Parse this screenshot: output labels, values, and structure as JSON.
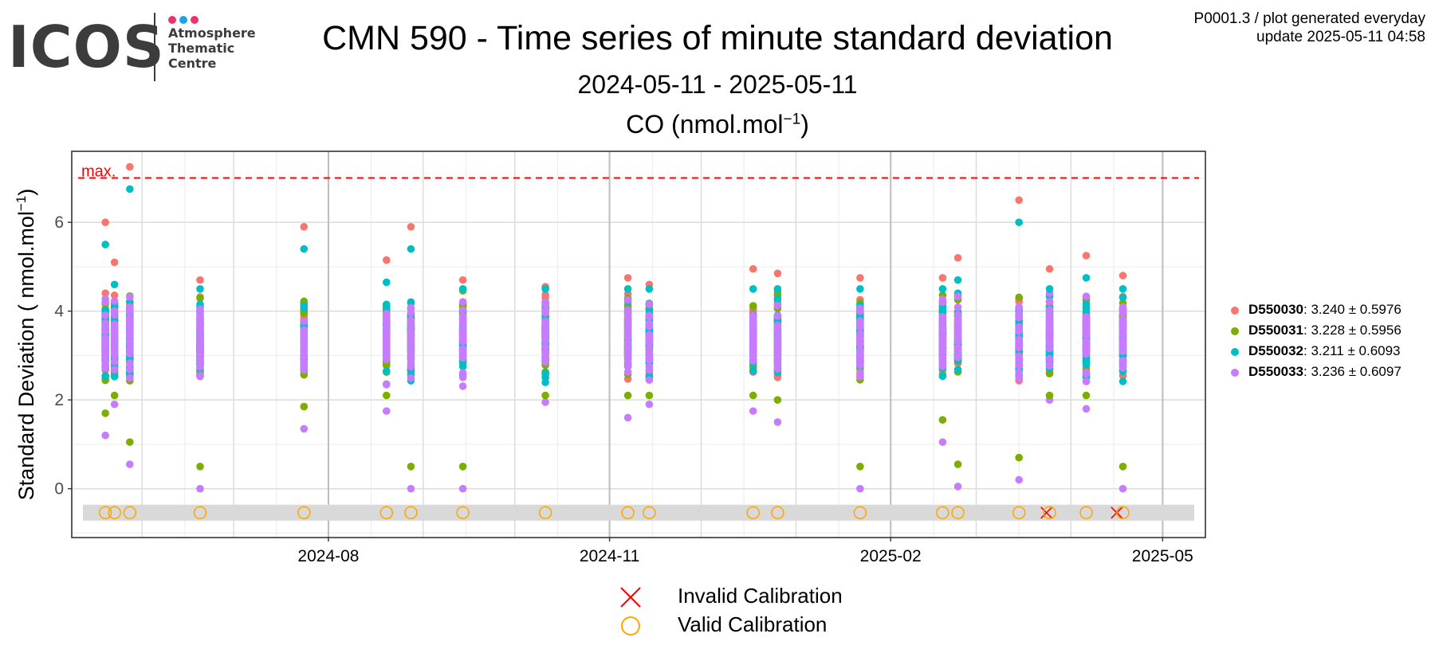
{
  "logo": {
    "text": "ICOS",
    "line1": "Atmosphere",
    "line2": "Thematic",
    "line3": "Centre",
    "dot_colors": [
      "#e8336d",
      "#1aa3e8",
      "#e8336d"
    ]
  },
  "header": {
    "title": "CMN 590 - Time series of minute standard deviation",
    "subtitle": "2024-05-11 - 2025-05-11",
    "gas_label": "CO (nmol.mol",
    "gas_sup": "−1",
    "gas_close": ")"
  },
  "meta": {
    "line1": "P0001.3 / plot generated everyday",
    "line2": "update  2025-05-11 04:58"
  },
  "chart_data": {
    "type": "scatter",
    "ylabel": "Standard Deviation ( nmol.mol",
    "ylabel_sup": "−1",
    "ylabel_close": ")",
    "ylim": [
      -1.1,
      7.6
    ],
    "xlim": [
      "2024-05-09",
      "2025-05-15"
    ],
    "yticks": [
      0,
      2,
      4,
      6
    ],
    "xticks": [
      "2024-08",
      "2024-11",
      "2025-02",
      "2025-05"
    ],
    "grid": true,
    "max_line": {
      "label": "max.",
      "value": 7,
      "color": "#ff0000"
    },
    "colors": {
      "D550030": "#F8766D",
      "D550031": "#7CAE00",
      "D550032": "#00BFC4",
      "D550033": "#C77CFF"
    },
    "series_summary": [
      {
        "name": "D550030",
        "stats": ": 3.240 ± 0.5976"
      },
      {
        "name": "D550031",
        "stats": ": 3.228 ± 0.5956"
      },
      {
        "name": "D550032",
        "stats": ": 3.211 ± 0.6093"
      },
      {
        "name": "D550033",
        "stats": ": 3.236 ± 0.6097"
      }
    ],
    "clusters": [
      {
        "date": "2024-05-20",
        "min": 1.2,
        "max": 6.0
      },
      {
        "date": "2024-05-23",
        "min": 1.9,
        "max": 5.1
      },
      {
        "date": "2024-05-28",
        "min": 0.55,
        "max": 7.25
      },
      {
        "date": "2024-06-20",
        "min": 0.0,
        "max": 4.7
      },
      {
        "date": "2024-07-24",
        "min": 1.35,
        "max": 5.9
      },
      {
        "date": "2024-08-20",
        "min": 1.75,
        "max": 5.15
      },
      {
        "date": "2024-08-28",
        "min": 0.0,
        "max": 5.9
      },
      {
        "date": "2024-09-14",
        "min": 0.0,
        "max": 4.7
      },
      {
        "date": "2024-10-11",
        "min": 1.95,
        "max": 4.55
      },
      {
        "date": "2024-11-07",
        "min": 1.6,
        "max": 4.75
      },
      {
        "date": "2024-11-14",
        "min": 1.9,
        "max": 4.6
      },
      {
        "date": "2024-12-18",
        "min": 1.75,
        "max": 4.95
      },
      {
        "date": "2024-12-26",
        "min": 1.5,
        "max": 4.85
      },
      {
        "date": "2025-01-22",
        "min": 0.0,
        "max": 4.75
      },
      {
        "date": "2025-02-18",
        "min": 1.05,
        "max": 4.75
      },
      {
        "date": "2025-02-23",
        "min": 0.05,
        "max": 5.2
      },
      {
        "date": "2025-03-15",
        "min": 0.2,
        "max": 6.5
      },
      {
        "date": "2025-03-25",
        "min": 2.0,
        "max": 4.95
      },
      {
        "date": "2025-04-06",
        "min": 1.8,
        "max": 5.25
      },
      {
        "date": "2025-04-18",
        "min": 0.0,
        "max": 4.8
      }
    ],
    "calibrations": [
      {
        "date": "2024-05-20",
        "status": "valid"
      },
      {
        "date": "2024-05-23",
        "status": "valid"
      },
      {
        "date": "2024-05-28",
        "status": "valid"
      },
      {
        "date": "2024-06-20",
        "status": "valid"
      },
      {
        "date": "2024-07-24",
        "status": "valid"
      },
      {
        "date": "2024-08-20",
        "status": "valid"
      },
      {
        "date": "2024-08-28",
        "status": "valid"
      },
      {
        "date": "2024-09-14",
        "status": "valid"
      },
      {
        "date": "2024-10-11",
        "status": "valid"
      },
      {
        "date": "2024-11-07",
        "status": "valid"
      },
      {
        "date": "2024-11-14",
        "status": "valid"
      },
      {
        "date": "2024-12-18",
        "status": "valid"
      },
      {
        "date": "2024-12-26",
        "status": "valid"
      },
      {
        "date": "2025-01-22",
        "status": "valid"
      },
      {
        "date": "2025-02-18",
        "status": "valid"
      },
      {
        "date": "2025-02-23",
        "status": "valid"
      },
      {
        "date": "2025-03-15",
        "status": "valid"
      },
      {
        "date": "2025-03-24",
        "status": "invalid"
      },
      {
        "date": "2025-03-25",
        "status": "valid"
      },
      {
        "date": "2025-04-06",
        "status": "valid"
      },
      {
        "date": "2025-04-16",
        "status": "invalid"
      },
      {
        "date": "2025-04-18",
        "status": "valid"
      }
    ],
    "calibration_band": [
      -0.72,
      -0.36
    ],
    "bottom_legend": [
      {
        "symbol": "cross",
        "label": "Invalid Calibration",
        "color": "#ff0000"
      },
      {
        "symbol": "circle",
        "label": "Valid Calibration",
        "color": "#ffa500"
      }
    ]
  }
}
